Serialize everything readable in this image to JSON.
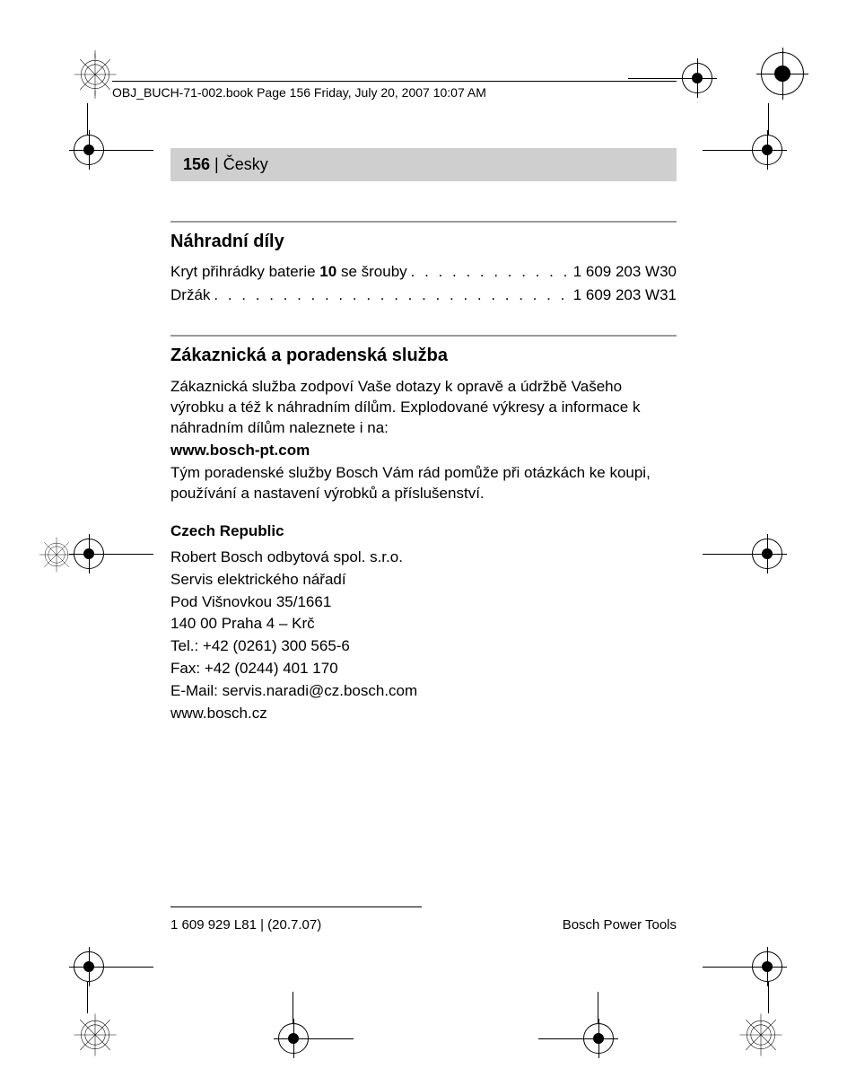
{
  "running_head": "OBJ_BUCH-71-002.book  Page 156  Friday, July 20, 2007  10:07 AM",
  "page_bar": {
    "number": "156",
    "sep": " | ",
    "lang": "Česky"
  },
  "section1": {
    "title": "Náhradní díly",
    "rows": [
      {
        "label_pre": "Kryt přihrádky baterie ",
        "label_bold": "10",
        "label_post": " se šrouby",
        "value": "1 609 203 W30"
      },
      {
        "label_pre": "Držák",
        "label_bold": "",
        "label_post": "",
        "value": "1 609 203 W31"
      }
    ]
  },
  "section2": {
    "title": "Zákaznická a poradenská služba",
    "para1": "Zákaznická služba zodpoví Vaše dotazy k opravě a údržbě Vašeho výrobku a též k náhradním dílům. Explodované výkresy a informace k náhradním dílům naleznete i na:",
    "url": "www.bosch-pt.com",
    "para2": "Tým poradenské služby Bosch Vám rád pomůže při otázkách ke koupi, používání a nastavení výrobků a příslušenství.",
    "contact_head": "Czech Republic",
    "contact_lines": [
      "Robert Bosch odbytová spol. s.r.o.",
      "Servis elektrického nářadí",
      "Pod Višnovkou 35/1661",
      "140 00 Praha 4 – Krč",
      "Tel.: +42 (0261) 300 565-6",
      "Fax: +42 (0244) 401 170",
      "E-Mail: servis.naradi@cz.bosch.com",
      "www.bosch.cz"
    ]
  },
  "footer": {
    "left": "1 609 929 L81 | (20.7.07)",
    "right": "Bosch Power Tools"
  },
  "colors": {
    "bar_bg": "#cfcfcf",
    "rule": "#9a9a9a",
    "text": "#000000",
    "page_bg": "#ffffff"
  }
}
